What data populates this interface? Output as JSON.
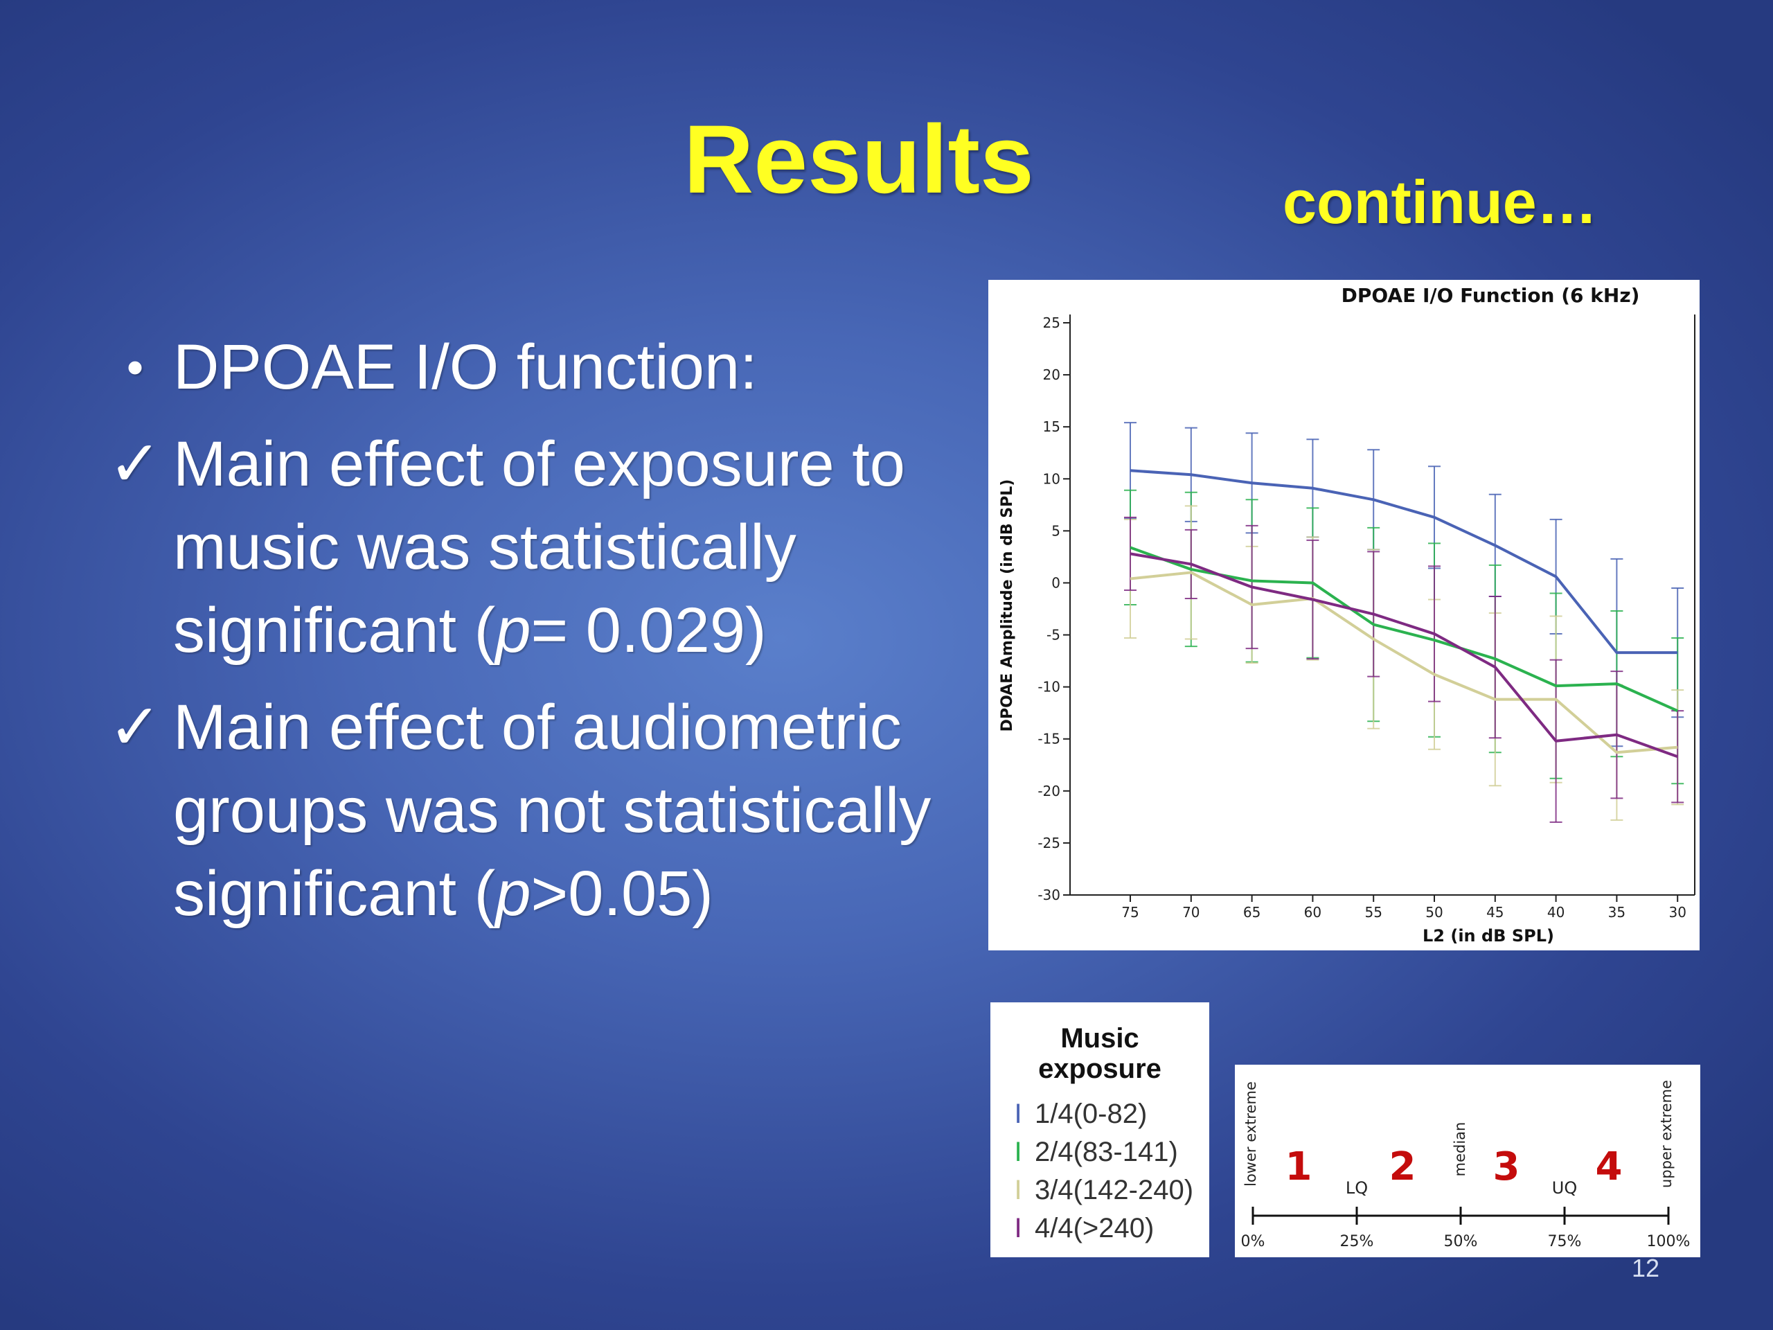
{
  "slide": {
    "title": "Results",
    "subtitle": "continue…",
    "page_number": "12",
    "bullets": [
      {
        "marker": "•",
        "text": "DPOAE I/O function:"
      },
      {
        "marker": "✓",
        "text_before": "Main effect of exposure to music was statistically significant (",
        "italic": "p",
        "text_after": "= 0.029)"
      },
      {
        "marker": "✓",
        "text_before": "Main effect of audiometric groups was not statistically significant (",
        "italic": "p",
        "text_after": ">0.05)"
      }
    ]
  },
  "colors": {
    "title": "#ffff22",
    "q1": "#4a63b5",
    "q2": "#2bb24f",
    "q3": "#d2cf98",
    "q4": "#7e2a82",
    "quartile_numbers": "#c40c0c"
  },
  "chart_data": {
    "type": "line",
    "title": "DPOAE I/O Function (6 kHz)",
    "xlabel": "L2 (in dB SPL)",
    "ylabel": "DPOAE Amplitude (in dB SPL)",
    "x": [
      75,
      70,
      65,
      60,
      55,
      50,
      45,
      40,
      35,
      30
    ],
    "x_reversed": true,
    "ylim": [
      -30,
      25
    ],
    "yticks": [
      25,
      20,
      15,
      10,
      5,
      0,
      -5,
      -10,
      -15,
      -20,
      -25,
      -30
    ],
    "error_bars": true,
    "series": [
      {
        "name": "1/4(0-82)",
        "color": "#4a63b5",
        "values": [
          10.8,
          10.4,
          9.6,
          9.1,
          8.0,
          6.3,
          3.6,
          0.6,
          -6.7,
          -6.7
        ],
        "err": [
          4.6,
          4.5,
          4.8,
          4.7,
          4.8,
          4.9,
          4.9,
          5.5,
          9.0,
          6.2
        ]
      },
      {
        "name": "2/4(83-141)",
        "color": "#2bb24f",
        "values": [
          3.4,
          1.3,
          0.2,
          0.0,
          -4.0,
          -5.5,
          -7.3,
          -9.9,
          -9.7,
          -12.3
        ],
        "err": [
          5.5,
          7.4,
          7.8,
          7.2,
          9.3,
          9.3,
          9.0,
          8.9,
          7.0,
          7.0
        ]
      },
      {
        "name": "3/4(142-240)",
        "color": "#d2cf98",
        "values": [
          0.4,
          1.0,
          -2.1,
          -1.5,
          -5.4,
          -8.8,
          -11.2,
          -11.2,
          -16.3,
          -15.8
        ],
        "err": [
          5.7,
          6.4,
          5.6,
          5.9,
          8.6,
          7.2,
          8.3,
          8.0,
          6.5,
          5.5
        ]
      },
      {
        "name": "4/4(>240)",
        "color": "#7e2a82",
        "values": [
          2.8,
          1.8,
          -0.4,
          -1.6,
          -3.0,
          -4.9,
          -8.1,
          -15.2,
          -14.6,
          -16.7
        ],
        "err": [
          3.5,
          3.3,
          5.9,
          5.7,
          6.0,
          6.5,
          6.8,
          7.8,
          6.1,
          4.4
        ]
      }
    ]
  },
  "legend": {
    "title_line1": "Music",
    "title_line2": "exposure",
    "items": [
      {
        "label": "1/4(0-82)",
        "color": "#4a63b5"
      },
      {
        "label": "2/4(83-141)",
        "color": "#2bb24f"
      },
      {
        "label": "3/4(142-240)",
        "color": "#d2cf98"
      },
      {
        "label": "4/4(>240)",
        "color": "#7e2a82"
      }
    ]
  },
  "quartile_scale": {
    "numbers": [
      "1",
      "2",
      "3",
      "4"
    ],
    "tick_labels": [
      "0%",
      "25%",
      "50%",
      "75%",
      "100%"
    ],
    "marker_labels": [
      "LQ",
      "UQ"
    ],
    "vertical_labels": [
      "lower extreme",
      "median",
      "upper extreme"
    ]
  }
}
